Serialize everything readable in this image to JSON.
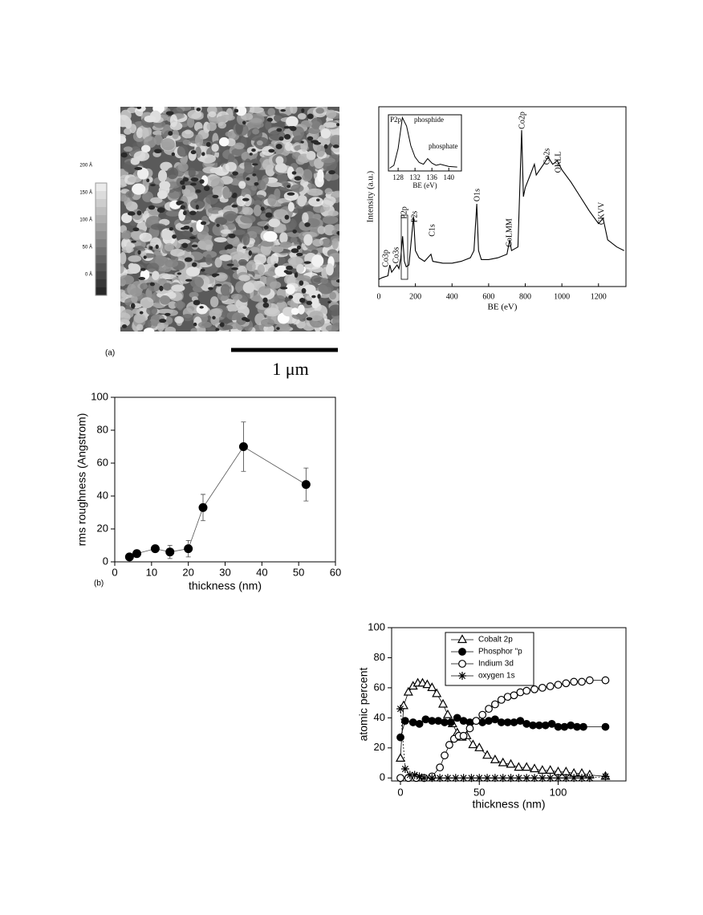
{
  "figure_a": {
    "label": "(a)",
    "scale_bar": "1 μm",
    "colorbar_labels": [
      "200 Å",
      "150 Å",
      "100 Å",
      "50 Å",
      "0 Å"
    ]
  },
  "chart_data": [
    {
      "type": "line",
      "xlabel": "BE (eV)",
      "ylabel": "Intensity (a.u.)",
      "x": [
        0,
        20,
        50,
        60,
        70,
        100,
        110,
        120,
        130,
        140,
        150,
        165,
        190,
        200,
        220,
        250,
        285,
        295,
        350,
        400,
        450,
        500,
        520,
        535,
        545,
        560,
        600,
        650,
        700,
        715,
        725,
        760,
        780,
        790,
        800,
        850,
        860,
        900,
        925,
        950,
        975,
        1000,
        1050,
        1100,
        1150,
        1200,
        1225,
        1250,
        1300,
        1340
      ],
      "values": [
        4,
        5,
        6,
        12,
        8,
        12,
        10,
        16,
        28,
        14,
        11,
        12,
        39,
        20,
        16,
        14,
        18,
        14,
        13,
        13,
        14,
        16,
        20,
        46,
        20,
        15,
        15,
        16,
        18,
        26,
        20,
        22,
        87,
        50,
        55,
        68,
        62,
        68,
        72,
        68,
        70,
        65,
        58,
        50,
        42,
        35,
        38,
        26,
        22,
        20
      ],
      "color": "#000000",
      "xlim": [
        0,
        1350
      ],
      "ylim": [
        0,
        100
      ],
      "xticks": [
        0,
        200,
        400,
        600,
        800,
        1000,
        1200
      ],
      "annotations": [
        "Co3p",
        "Co3s",
        "P2p",
        "P2s",
        "C1s",
        "O1s",
        "CoLMM",
        "Co2p",
        "Co2s",
        "OKLL",
        "CKVV"
      ]
    },
    {
      "type": "line",
      "xlabel": "BE (eV)",
      "x": [
        126,
        127,
        128,
        129,
        130,
        131,
        132,
        133,
        134,
        135,
        136,
        137,
        138,
        140,
        142
      ],
      "values": [
        5,
        10,
        40,
        95,
        80,
        45,
        25,
        15,
        12,
        22,
        14,
        10,
        12,
        8,
        7
      ],
      "color": "#000000",
      "xlim": [
        125.7,
        143
      ],
      "ylim": [
        0,
        100
      ],
      "xticks": [
        128,
        132,
        136,
        140
      ],
      "annotations": [
        "P2p",
        "phosphide",
        "phosphate"
      ]
    },
    {
      "type": "scatter",
      "label": "(b)",
      "xlabel": "thickness (nm)",
      "ylabel": "rms roughness (Angstrom)",
      "x": [
        4,
        6,
        11,
        15,
        20,
        24,
        35,
        52
      ],
      "values": [
        3,
        5,
        8,
        6,
        8,
        33,
        70,
        47
      ],
      "errors": [
        1,
        1,
        1,
        4,
        5,
        8,
        15,
        10
      ],
      "color": "#000000",
      "xlim": [
        0,
        60
      ],
      "ylim": [
        0,
        100
      ],
      "xticks": [
        0,
        10,
        20,
        30,
        40,
        50,
        60
      ],
      "yticks": [
        0,
        20,
        40,
        60,
        80,
        100
      ]
    },
    {
      "type": "line",
      "xlabel": "thickness (nm)",
      "ylabel": "atomic percent",
      "xlim": [
        -5.6,
        143
      ],
      "ylim": [
        -2,
        100
      ],
      "xticks": [
        0,
        50,
        100
      ],
      "yticks": [
        0,
        20,
        40,
        60,
        80,
        100
      ],
      "series": [
        {
          "name": "Cobalt 2p",
          "color": "#000000",
          "marker": "open-triangle",
          "x": [
            0,
            2,
            5,
            8,
            11,
            14,
            17,
            20,
            23,
            27,
            30,
            33,
            36,
            39,
            42,
            46,
            50,
            55,
            60,
            65,
            70,
            75,
            80,
            85,
            90,
            95,
            100,
            105,
            110,
            115,
            120,
            130
          ],
          "values": [
            13,
            48,
            57,
            61,
            63,
            63,
            62,
            60,
            56,
            49,
            42,
            36,
            30,
            27,
            28,
            22,
            20,
            15,
            12,
            10,
            9,
            7,
            7,
            6,
            5,
            5,
            4,
            4,
            3,
            3,
            2,
            1
          ]
        },
        {
          "name": "Phosphor \"p",
          "color": "#000000",
          "marker": "filled-circle",
          "x": [
            0,
            3,
            8,
            12,
            16,
            20,
            24,
            28,
            32,
            36,
            40,
            44,
            48,
            52,
            56,
            60,
            64,
            68,
            72,
            76,
            80,
            84,
            88,
            92,
            96,
            100,
            104,
            108,
            112,
            116,
            130
          ],
          "values": [
            27,
            38,
            37,
            36,
            39,
            38,
            38,
            37,
            37,
            40,
            38,
            37,
            38,
            37,
            38,
            39,
            37,
            37,
            37,
            38,
            36,
            35,
            35,
            35,
            36,
            34,
            34,
            35,
            34,
            34,
            34
          ]
        },
        {
          "name": "Indium 3d",
          "color": "#000000",
          "marker": "open-circle",
          "x": [
            0,
            5,
            10,
            15,
            20,
            25,
            28,
            31,
            34,
            37,
            40,
            44,
            48,
            52,
            56,
            60,
            64,
            68,
            72,
            76,
            80,
            85,
            90,
            95,
            100,
            105,
            110,
            115,
            120,
            130
          ],
          "values": [
            0,
            0,
            0,
            0,
            1,
            7,
            15,
            22,
            26,
            28,
            28,
            33,
            38,
            42,
            46,
            49,
            52,
            54,
            55,
            57,
            58,
            59,
            60,
            61,
            62,
            63,
            64,
            64,
            65,
            65
          ]
        },
        {
          "name": "oxygen 1s",
          "color": "#000000",
          "marker": "asterisk",
          "x": [
            0,
            3,
            6,
            9,
            12,
            15,
            20,
            25,
            30,
            35,
            40,
            45,
            50,
            55,
            60,
            65,
            70,
            75,
            80,
            85,
            90,
            95,
            100,
            105,
            110,
            115,
            120,
            130
          ],
          "values": [
            46,
            6,
            2,
            2,
            1,
            0,
            0,
            0,
            0,
            0,
            0,
            0,
            0,
            0,
            0,
            0,
            0,
            0,
            0,
            0,
            0,
            0,
            0,
            0,
            0,
            0,
            0,
            1
          ]
        }
      ]
    }
  ]
}
